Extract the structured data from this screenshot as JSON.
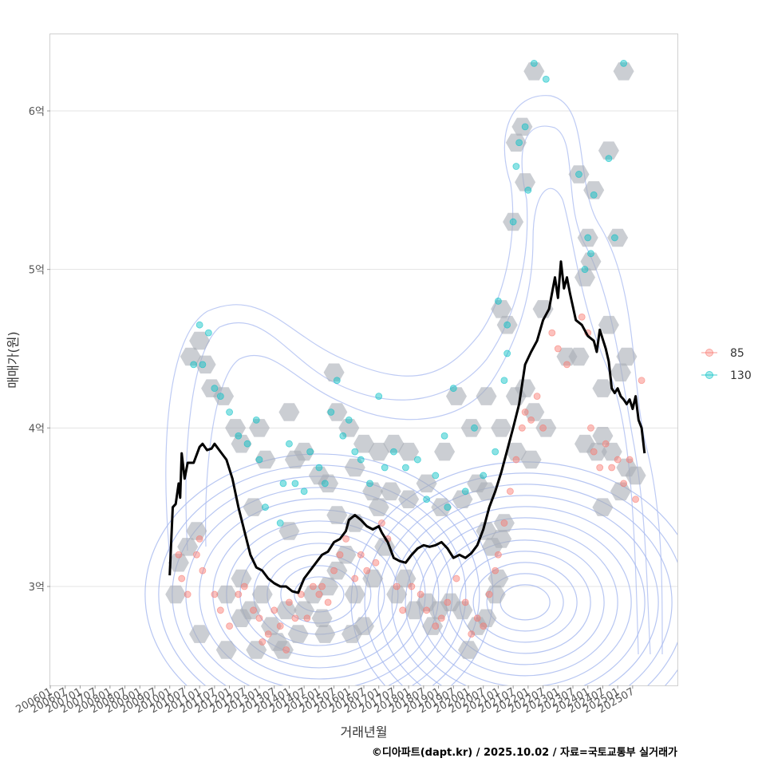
{
  "chart_data": {
    "type": "scatter",
    "xlabel": "거래년월",
    "ylabel": "매매가(원)",
    "caption": "©디아파트(dapt.kr) / 2025.10.02 / 자료=국토교통부 실거래가",
    "x_ticks": [
      "200601",
      "200607",
      "200701",
      "200707",
      "200801",
      "200807",
      "200901",
      "200907",
      "201001",
      "201007",
      "201101",
      "201107",
      "201201",
      "201207",
      "201301",
      "201307",
      "201401",
      "201407",
      "201501",
      "201507",
      "201601",
      "201607",
      "201701",
      "201707",
      "201801",
      "201807",
      "201901",
      "201907",
      "202001",
      "202007",
      "202101",
      "202107",
      "202201",
      "202207",
      "202301",
      "202307",
      "202401",
      "202407",
      "202501",
      "202507"
    ],
    "xlim": [
      2006.0,
      2027.0
    ],
    "y_ticks": [
      3,
      4,
      5,
      6
    ],
    "y_tick_labels": [
      "3억",
      "4억",
      "5억",
      "6억"
    ],
    "ylim": [
      2.45,
      6.5
    ],
    "legend": [
      {
        "name": "85",
        "color": "#F8766D"
      },
      {
        "name": "130",
        "color": "#00BFC4"
      }
    ],
    "series": [
      {
        "name": "85",
        "color": "#F8766D",
        "points": [
          [
            2010.3,
            3.2
          ],
          [
            2010.4,
            3.05
          ],
          [
            2010.9,
            3.2
          ],
          [
            2011.0,
            3.3
          ],
          [
            2011.1,
            3.1
          ],
          [
            2010.6,
            2.95
          ],
          [
            2011.5,
            2.95
          ],
          [
            2011.7,
            2.85
          ],
          [
            2012.0,
            2.75
          ],
          [
            2012.3,
            2.95
          ],
          [
            2012.5,
            3.0
          ],
          [
            2012.8,
            2.85
          ],
          [
            2013.0,
            2.8
          ],
          [
            2013.1,
            2.65
          ],
          [
            2013.3,
            2.7
          ],
          [
            2013.5,
            2.85
          ],
          [
            2013.7,
            2.75
          ],
          [
            2013.9,
            2.6
          ],
          [
            2014.0,
            2.9
          ],
          [
            2014.2,
            2.8
          ],
          [
            2014.4,
            2.95
          ],
          [
            2014.6,
            2.8
          ],
          [
            2014.8,
            3.0
          ],
          [
            2015.0,
            2.95
          ],
          [
            2015.1,
            3.0
          ],
          [
            2015.3,
            2.9
          ],
          [
            2015.5,
            3.1
          ],
          [
            2015.7,
            3.2
          ],
          [
            2015.9,
            3.3
          ],
          [
            2016.2,
            3.05
          ],
          [
            2016.4,
            3.2
          ],
          [
            2016.6,
            3.1
          ],
          [
            2016.9,
            3.15
          ],
          [
            2017.1,
            3.4
          ],
          [
            2017.3,
            3.3
          ],
          [
            2017.6,
            3.0
          ],
          [
            2017.8,
            2.85
          ],
          [
            2018.1,
            3.0
          ],
          [
            2018.4,
            2.95
          ],
          [
            2018.6,
            2.85
          ],
          [
            2018.9,
            2.75
          ],
          [
            2019.1,
            2.8
          ],
          [
            2019.3,
            2.9
          ],
          [
            2019.6,
            3.05
          ],
          [
            2019.9,
            2.9
          ],
          [
            2020.1,
            2.7
          ],
          [
            2020.3,
            2.8
          ],
          [
            2020.5,
            2.75
          ],
          [
            2020.7,
            2.95
          ],
          [
            2020.9,
            3.1
          ],
          [
            2021.0,
            3.2
          ],
          [
            2021.2,
            3.4
          ],
          [
            2021.4,
            3.6
          ],
          [
            2021.6,
            3.8
          ],
          [
            2021.8,
            4.0
          ],
          [
            2021.9,
            4.1
          ],
          [
            2022.1,
            4.05
          ],
          [
            2022.3,
            4.2
          ],
          [
            2022.5,
            4.0
          ],
          [
            2022.8,
            4.6
          ],
          [
            2023.0,
            4.5
          ],
          [
            2023.3,
            4.4
          ],
          [
            2023.8,
            4.7
          ],
          [
            2024.0,
            4.6
          ],
          [
            2024.1,
            4.0
          ],
          [
            2024.2,
            3.85
          ],
          [
            2024.4,
            3.75
          ],
          [
            2024.6,
            3.9
          ],
          [
            2024.8,
            3.75
          ],
          [
            2025.0,
            3.8
          ],
          [
            2025.2,
            3.65
          ],
          [
            2025.4,
            3.8
          ],
          [
            2025.6,
            3.55
          ],
          [
            2025.8,
            4.3
          ]
        ]
      },
      {
        "name": "130",
        "color": "#00BFC4",
        "points": [
          [
            2010.8,
            4.4
          ],
          [
            2011.0,
            4.65
          ],
          [
            2011.1,
            4.4
          ],
          [
            2011.3,
            4.6
          ],
          [
            2011.5,
            4.25
          ],
          [
            2011.7,
            4.2
          ],
          [
            2012.0,
            4.1
          ],
          [
            2012.3,
            3.95
          ],
          [
            2012.6,
            3.9
          ],
          [
            2012.9,
            4.05
          ],
          [
            2013.0,
            3.8
          ],
          [
            2013.2,
            3.5
          ],
          [
            2013.7,
            3.4
          ],
          [
            2014.0,
            3.9
          ],
          [
            2014.2,
            3.65
          ],
          [
            2014.5,
            3.6
          ],
          [
            2014.7,
            3.85
          ],
          [
            2015.0,
            3.75
          ],
          [
            2015.2,
            3.65
          ],
          [
            2015.4,
            4.1
          ],
          [
            2015.6,
            4.3
          ],
          [
            2015.8,
            3.95
          ],
          [
            2016.0,
            4.05
          ],
          [
            2016.2,
            3.85
          ],
          [
            2016.4,
            3.8
          ],
          [
            2016.7,
            3.65
          ],
          [
            2017.0,
            4.2
          ],
          [
            2017.2,
            3.75
          ],
          [
            2017.5,
            3.85
          ],
          [
            2017.9,
            3.75
          ],
          [
            2018.3,
            3.8
          ],
          [
            2018.6,
            3.55
          ],
          [
            2018.9,
            3.7
          ],
          [
            2019.2,
            3.95
          ],
          [
            2019.3,
            3.5
          ],
          [
            2019.5,
            4.25
          ],
          [
            2019.9,
            3.6
          ],
          [
            2020.2,
            4.0
          ],
          [
            2020.5,
            3.7
          ],
          [
            2020.9,
            3.85
          ],
          [
            2021.0,
            4.8
          ],
          [
            2021.2,
            4.3
          ],
          [
            2021.3,
            4.65
          ],
          [
            2021.5,
            5.3
          ],
          [
            2021.6,
            5.65
          ],
          [
            2021.7,
            5.8
          ],
          [
            2021.9,
            5.9
          ],
          [
            2022.0,
            5.5
          ],
          [
            2022.2,
            6.3
          ],
          [
            2022.6,
            6.2
          ],
          [
            2023.7,
            5.6
          ],
          [
            2023.9,
            5.0
          ],
          [
            2024.0,
            5.2
          ],
          [
            2024.1,
            5.1
          ],
          [
            2024.2,
            5.47
          ],
          [
            2024.7,
            5.7
          ],
          [
            2024.9,
            5.2
          ],
          [
            2025.2,
            6.3
          ],
          [
            2021.3,
            4.47
          ],
          [
            2013.8,
            3.65
          ]
        ]
      }
    ],
    "hexbins": [
      [
        2022.2,
        6.25
      ],
      [
        2021.8,
        5.9
      ],
      [
        2021.6,
        5.8
      ],
      [
        2021.9,
        5.55
      ],
      [
        2021.5,
        5.3
      ],
      [
        2023.7,
        5.6
      ],
      [
        2024.2,
        5.5
      ],
      [
        2024.7,
        5.75
      ],
      [
        2025.2,
        6.25
      ],
      [
        2024.0,
        5.2
      ],
      [
        2024.1,
        5.05
      ],
      [
        2023.9,
        4.95
      ],
      [
        2025.0,
        5.2
      ],
      [
        2021.1,
        4.75
      ],
      [
        2021.3,
        4.65
      ],
      [
        2022.5,
        4.75
      ],
      [
        2024.7,
        4.65
      ],
      [
        2023.3,
        4.45
      ],
      [
        2023.7,
        4.45
      ],
      [
        2024.5,
        4.25
      ],
      [
        2025.1,
        4.35
      ],
      [
        2025.3,
        4.45
      ],
      [
        2010.7,
        4.45
      ],
      [
        2011.0,
        4.55
      ],
      [
        2011.2,
        4.4
      ],
      [
        2011.4,
        4.25
      ],
      [
        2011.8,
        4.2
      ],
      [
        2012.2,
        4.0
      ],
      [
        2012.4,
        3.9
      ],
      [
        2013.0,
        4.0
      ],
      [
        2013.2,
        3.8
      ],
      [
        2015.5,
        4.35
      ],
      [
        2014.0,
        4.1
      ],
      [
        2015.6,
        4.1
      ],
      [
        2016.0,
        4.0
      ],
      [
        2016.5,
        3.9
      ],
      [
        2017.0,
        3.85
      ],
      [
        2017.5,
        3.9
      ],
      [
        2018.0,
        3.85
      ],
      [
        2018.6,
        3.65
      ],
      [
        2019.2,
        3.85
      ],
      [
        2019.6,
        4.2
      ],
      [
        2020.1,
        4.0
      ],
      [
        2020.6,
        4.2
      ],
      [
        2021.1,
        4.0
      ],
      [
        2021.6,
        4.2
      ],
      [
        2021.9,
        4.25
      ],
      [
        2022.2,
        4.1
      ],
      [
        2022.6,
        4.0
      ],
      [
        2014.2,
        3.8
      ],
      [
        2014.5,
        3.85
      ],
      [
        2015.0,
        3.7
      ],
      [
        2015.3,
        3.65
      ],
      [
        2016.2,
        3.75
      ],
      [
        2016.8,
        3.6
      ],
      [
        2017.4,
        3.6
      ],
      [
        2018.0,
        3.55
      ],
      [
        2019.1,
        3.5
      ],
      [
        2019.8,
        3.55
      ],
      [
        2020.3,
        3.65
      ],
      [
        2020.6,
        3.6
      ],
      [
        2021.2,
        3.4
      ],
      [
        2021.6,
        3.85
      ],
      [
        2022.1,
        3.8
      ],
      [
        2023.9,
        3.9
      ],
      [
        2024.3,
        3.85
      ],
      [
        2024.5,
        3.95
      ],
      [
        2024.8,
        3.85
      ],
      [
        2025.3,
        3.75
      ],
      [
        2025.6,
        3.7
      ],
      [
        2024.5,
        3.5
      ],
      [
        2025.1,
        3.6
      ],
      [
        2012.8,
        3.5
      ],
      [
        2014.0,
        3.35
      ],
      [
        2015.6,
        3.45
      ],
      [
        2016.2,
        3.4
      ],
      [
        2017.0,
        3.5
      ],
      [
        2010.9,
        3.35
      ],
      [
        2010.6,
        3.25
      ],
      [
        2010.3,
        3.15
      ],
      [
        2010.2,
        2.95
      ],
      [
        2011.0,
        2.7
      ],
      [
        2011.9,
        2.95
      ],
      [
        2012.4,
        3.05
      ],
      [
        2012.7,
        2.85
      ],
      [
        2013.1,
        2.95
      ],
      [
        2013.4,
        2.75
      ],
      [
        2013.6,
        2.65
      ],
      [
        2013.9,
        2.85
      ],
      [
        2014.3,
        2.7
      ],
      [
        2014.5,
        2.85
      ],
      [
        2014.8,
        2.95
      ],
      [
        2015.1,
        2.8
      ],
      [
        2015.3,
        3.0
      ],
      [
        2015.6,
        3.1
      ],
      [
        2015.9,
        3.2
      ],
      [
        2016.2,
        2.95
      ],
      [
        2016.5,
        2.75
      ],
      [
        2016.8,
        3.05
      ],
      [
        2017.2,
        3.25
      ],
      [
        2017.6,
        2.95
      ],
      [
        2017.9,
        3.05
      ],
      [
        2018.2,
        2.85
      ],
      [
        2018.6,
        2.9
      ],
      [
        2019.0,
        2.85
      ],
      [
        2019.4,
        2.9
      ],
      [
        2019.8,
        2.85
      ],
      [
        2020.0,
        2.6
      ],
      [
        2020.3,
        2.75
      ],
      [
        2020.6,
        2.8
      ],
      [
        2020.9,
        2.95
      ],
      [
        2020.8,
        3.25
      ],
      [
        2020.6,
        3.35
      ],
      [
        2021.1,
        3.3
      ],
      [
        2011.9,
        2.6
      ],
      [
        2012.9,
        2.6
      ],
      [
        2013.8,
        2.6
      ],
      [
        2015.2,
        2.7
      ],
      [
        2016.1,
        2.7
      ],
      [
        2018.8,
        2.75
      ],
      [
        2021.0,
        3.05
      ],
      [
        2012.4,
        2.8
      ]
    ],
    "density_centers": [
      {
        "x": 2015.0,
        "y": 2.95
      },
      {
        "x": 2021.9,
        "y": 2.9
      }
    ],
    "line": [
      [
        2010.0,
        3.07
      ],
      [
        2010.1,
        3.5
      ],
      [
        2010.2,
        3.52
      ],
      [
        2010.3,
        3.65
      ],
      [
        2010.35,
        3.56
      ],
      [
        2010.4,
        3.84
      ],
      [
        2010.5,
        3.68
      ],
      [
        2010.6,
        3.78
      ],
      [
        2010.8,
        3.78
      ],
      [
        2011.0,
        3.88
      ],
      [
        2011.1,
        3.9
      ],
      [
        2011.25,
        3.86
      ],
      [
        2011.4,
        3.87
      ],
      [
        2011.5,
        3.9
      ],
      [
        2011.7,
        3.85
      ],
      [
        2011.9,
        3.8
      ],
      [
        2012.1,
        3.68
      ],
      [
        2012.3,
        3.5
      ],
      [
        2012.5,
        3.35
      ],
      [
        2012.7,
        3.2
      ],
      [
        2012.9,
        3.12
      ],
      [
        2013.1,
        3.1
      ],
      [
        2013.3,
        3.05
      ],
      [
        2013.5,
        3.02
      ],
      [
        2013.7,
        3.0
      ],
      [
        2013.9,
        3.0
      ],
      [
        2014.1,
        2.97
      ],
      [
        2014.3,
        2.96
      ],
      [
        2014.5,
        3.05
      ],
      [
        2014.7,
        3.1
      ],
      [
        2014.9,
        3.15
      ],
      [
        2015.1,
        3.2
      ],
      [
        2015.3,
        3.22
      ],
      [
        2015.5,
        3.28
      ],
      [
        2015.7,
        3.3
      ],
      [
        2015.9,
        3.35
      ],
      [
        2016.0,
        3.42
      ],
      [
        2016.2,
        3.45
      ],
      [
        2016.4,
        3.42
      ],
      [
        2016.6,
        3.38
      ],
      [
        2016.8,
        3.36
      ],
      [
        2017.0,
        3.38
      ],
      [
        2017.1,
        3.34
      ],
      [
        2017.3,
        3.28
      ],
      [
        2017.5,
        3.18
      ],
      [
        2017.7,
        3.16
      ],
      [
        2017.9,
        3.15
      ],
      [
        2018.1,
        3.2
      ],
      [
        2018.3,
        3.24
      ],
      [
        2018.5,
        3.26
      ],
      [
        2018.7,
        3.25
      ],
      [
        2018.9,
        3.26
      ],
      [
        2019.1,
        3.28
      ],
      [
        2019.3,
        3.24
      ],
      [
        2019.5,
        3.18
      ],
      [
        2019.7,
        3.2
      ],
      [
        2019.9,
        3.18
      ],
      [
        2020.1,
        3.21
      ],
      [
        2020.3,
        3.26
      ],
      [
        2020.5,
        3.36
      ],
      [
        2020.7,
        3.5
      ],
      [
        2020.9,
        3.6
      ],
      [
        2021.1,
        3.72
      ],
      [
        2021.3,
        3.86
      ],
      [
        2021.5,
        4.0
      ],
      [
        2021.7,
        4.15
      ],
      [
        2021.9,
        4.4
      ],
      [
        2022.1,
        4.48
      ],
      [
        2022.3,
        4.55
      ],
      [
        2022.5,
        4.68
      ],
      [
        2022.7,
        4.75
      ],
      [
        2022.8,
        4.85
      ],
      [
        2022.9,
        4.95
      ],
      [
        2023.0,
        4.82
      ],
      [
        2023.1,
        5.05
      ],
      [
        2023.2,
        4.88
      ],
      [
        2023.3,
        4.95
      ],
      [
        2023.4,
        4.85
      ],
      [
        2023.6,
        4.68
      ],
      [
        2023.8,
        4.65
      ],
      [
        2024.0,
        4.58
      ],
      [
        2024.2,
        4.55
      ],
      [
        2024.3,
        4.48
      ],
      [
        2024.4,
        4.62
      ],
      [
        2024.5,
        4.56
      ],
      [
        2024.6,
        4.5
      ],
      [
        2024.7,
        4.42
      ],
      [
        2024.8,
        4.25
      ],
      [
        2024.9,
        4.22
      ],
      [
        2025.0,
        4.25
      ],
      [
        2025.1,
        4.2
      ],
      [
        2025.2,
        4.18
      ],
      [
        2025.3,
        4.15
      ],
      [
        2025.4,
        4.18
      ],
      [
        2025.5,
        4.12
      ],
      [
        2025.6,
        4.2
      ],
      [
        2025.7,
        4.05
      ],
      [
        2025.8,
        4.0
      ],
      [
        2025.9,
        3.84
      ]
    ]
  }
}
